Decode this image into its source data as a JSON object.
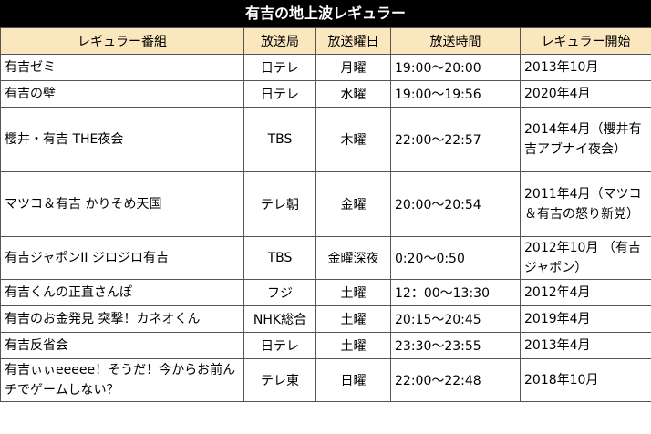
{
  "title": "有吉の地上波レギュラー",
  "columns": [
    "レギュラー番組",
    "放送局",
    "放送曜日",
    "放送時間",
    "レギュラー開始"
  ],
  "rows": [
    {
      "program": "有吉ゼミ",
      "station": "日テレ",
      "day": "月曜",
      "time": "19:00～20:00",
      "start": "2013年10月"
    },
    {
      "program": "有吉の壁",
      "station": "日テレ",
      "day": "水曜",
      "time": "19:00～19:56",
      "start": "2020年4月"
    },
    {
      "program": "櫻井・有吉 THE夜会",
      "station": "TBS",
      "day": "木曜",
      "time": "22:00～22:57",
      "start": "2014年4月（櫻井有吉アブナイ夜会）"
    },
    {
      "program": "マツコ＆有吉 かりそめ天国",
      "station": "テレ朝",
      "day": "金曜",
      "time": "20:00～20:54",
      "start": "2011年4月（マツコ＆有吉の怒り新党）"
    },
    {
      "program": "有吉ジャポンII ジロジロ有吉",
      "station": "TBS",
      "day": "金曜深夜",
      "time": "0:20～0:50",
      "start": "2012年10月 （有吉ジャポン）"
    },
    {
      "program": "有吉くんの正直さんぽ",
      "station": "フジ",
      "day": "土曜",
      "time": "12：00～13:30",
      "start": "2012年4月"
    },
    {
      "program": "有吉のお金発見 突撃！カネオくん",
      "station": "NHK総合",
      "day": "土曜",
      "time": "20:15～20:45",
      "start": "2019年4月"
    },
    {
      "program": "有吉反省会",
      "station": "日テレ",
      "day": "土曜",
      "time": "23:30～23:55",
      "start": "2013年4月"
    },
    {
      "program": "有吉ぃぃeeeee！そうだ！今からお前んチでゲームしない？",
      "station": "テレ東",
      "day": "日曜",
      "time": "22:00～22:48",
      "start": "2018年10月"
    }
  ],
  "colors": {
    "title_bg": "#000000",
    "header_bg": "#fbe7bd",
    "border": "#555555"
  }
}
